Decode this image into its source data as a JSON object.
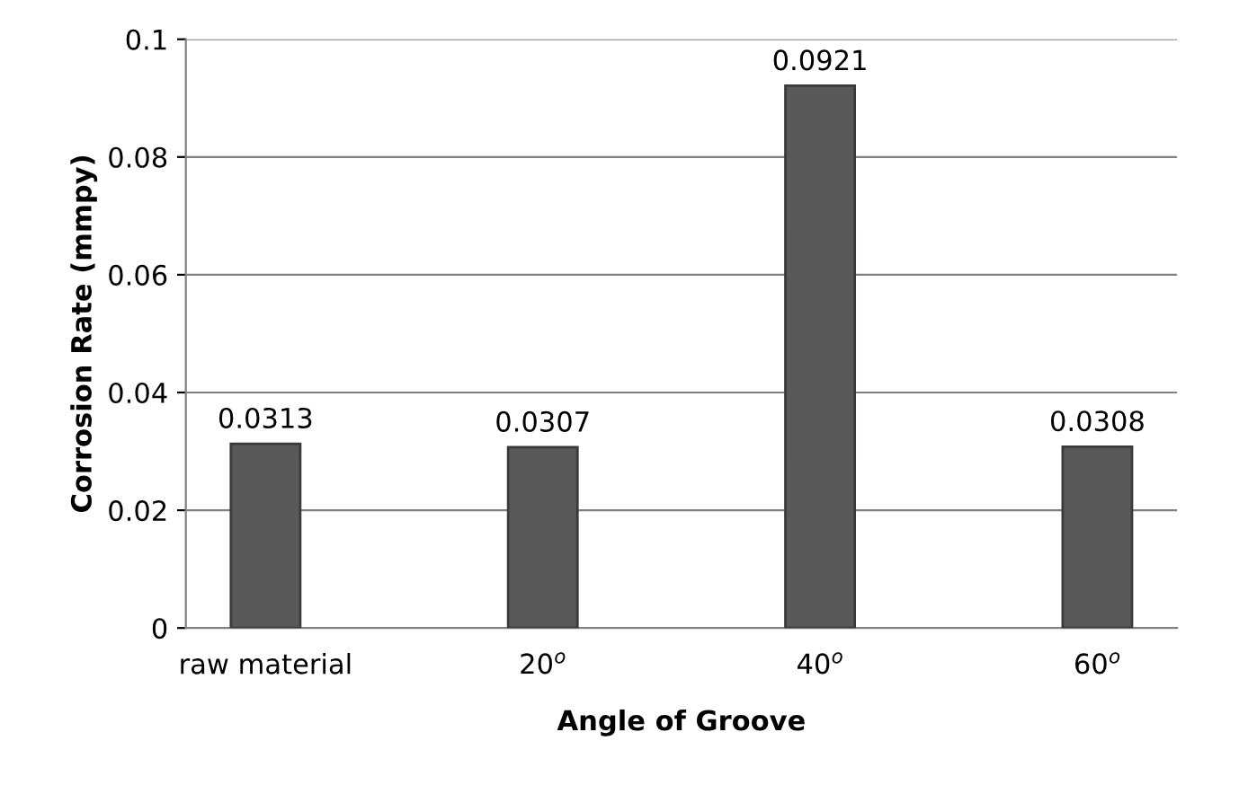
{
  "chart_data": {
    "type": "bar",
    "xlabel": "Angle of Groove",
    "ylabel": "Corrosion Rate (mmpy)",
    "categories": [
      "raw material",
      "20$^{o}$",
      "40$^{o}$",
      "60$^{o}$"
    ],
    "values": [
      0.0313,
      0.0307,
      0.0921,
      0.0308
    ],
    "color": "#595959",
    "ylim": [
      0,
      0.1
    ],
    "yticks": [
      0,
      0.02,
      0.04,
      0.06,
      0.08,
      0.1
    ],
    "grid": "y",
    "data_labels": true
  }
}
